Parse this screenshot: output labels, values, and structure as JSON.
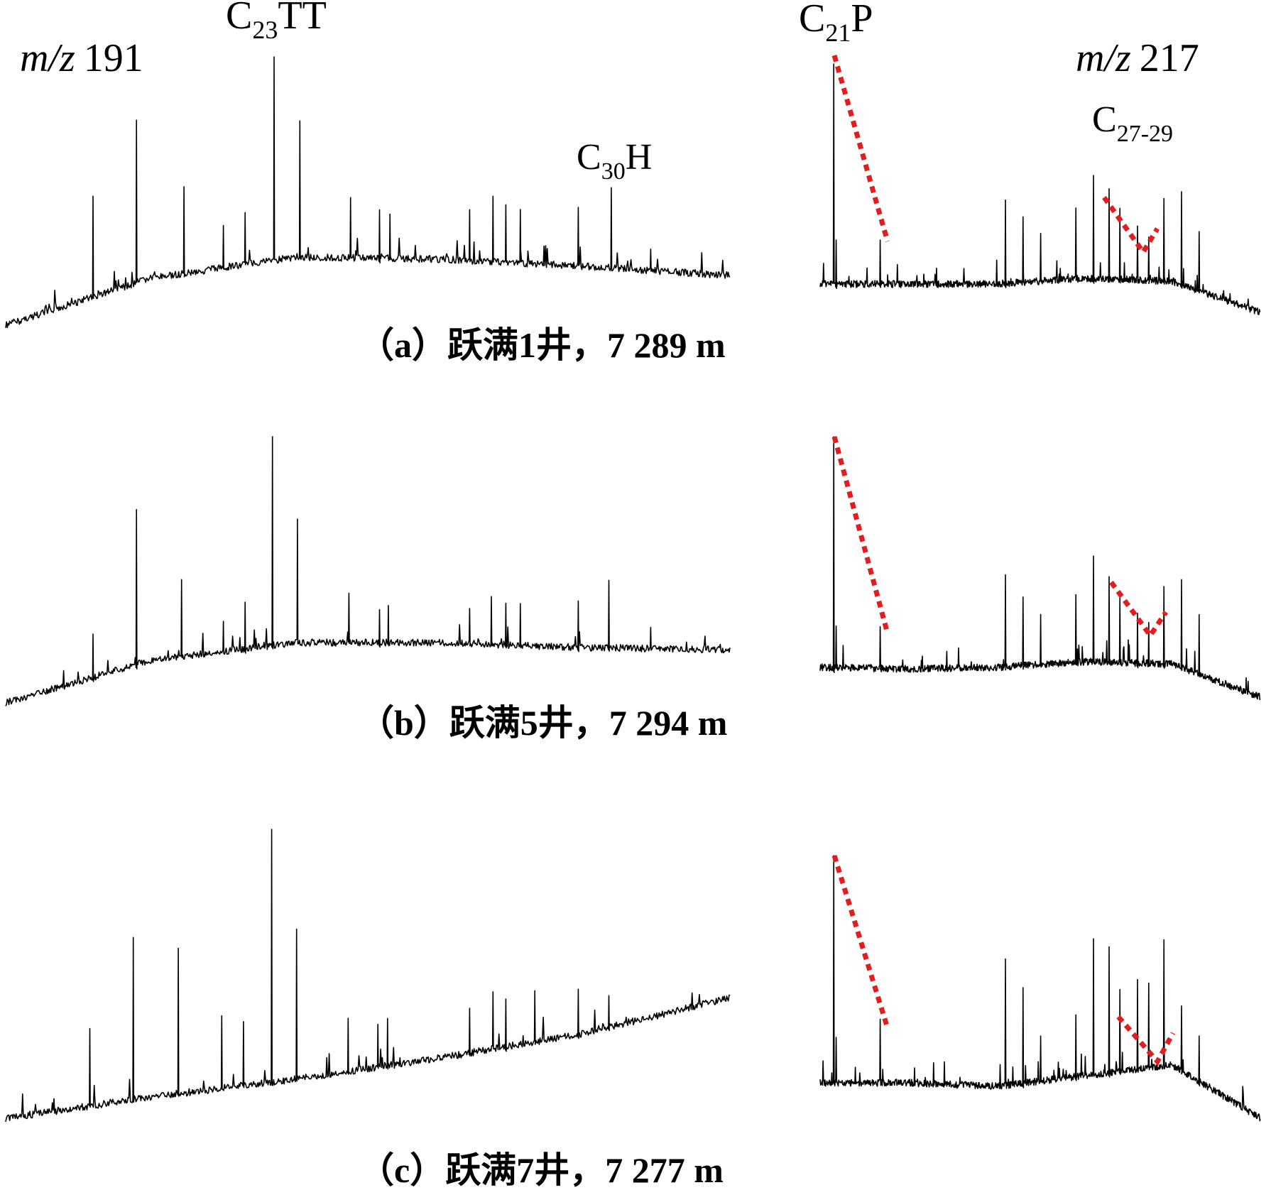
{
  "figure": {
    "panel_captions": [
      "（a）跃满1井，7 289 m",
      "（b）跃满5井，7 294 m",
      "（c）跃满7井，7 277 m"
    ],
    "ion_labels": {
      "left": "m/z 191",
      "right": "m/z 217"
    },
    "compound_labels": {
      "c23tt": {
        "base": "C",
        "sub": "23",
        "suffix": "TT"
      },
      "c30h": {
        "base": "C",
        "sub": "30",
        "suffix": "H"
      },
      "c21p": {
        "base": "C",
        "sub": "21",
        "suffix": "P"
      },
      "c27_29": {
        "base": "C",
        "sub": "27-29",
        "suffix": ""
      }
    },
    "colors": {
      "trace": "#000000",
      "guide": "#e11d1d"
    }
  },
  "chart_data": [
    {
      "type": "line",
      "panel": "a",
      "ion": "m/z 191",
      "peaks": [
        {
          "x": 0.12,
          "h": 0.42
        },
        {
          "x": 0.18,
          "h": 0.72
        },
        {
          "x": 0.245,
          "h": 0.4
        },
        {
          "x": 0.3,
          "h": 0.2
        },
        {
          "x": 0.33,
          "h": 0.25
        },
        {
          "x": 0.37,
          "h": 1.0
        },
        {
          "x": 0.405,
          "h": 0.68
        },
        {
          "x": 0.475,
          "h": 0.3
        },
        {
          "x": 0.515,
          "h": 0.24
        },
        {
          "x": 0.53,
          "h": 0.22
        },
        {
          "x": 0.64,
          "h": 0.25
        },
        {
          "x": 0.672,
          "h": 0.32
        },
        {
          "x": 0.69,
          "h": 0.28
        },
        {
          "x": 0.71,
          "h": 0.26
        },
        {
          "x": 0.79,
          "h": 0.28
        },
        {
          "x": 0.835,
          "h": 0.38
        },
        {
          "x": 0.89,
          "h": 0.1
        }
      ]
    },
    {
      "type": "line",
      "panel": "a",
      "ion": "m/z 217",
      "peaks": [
        {
          "x": 0.03,
          "h": 1.0
        },
        {
          "x": 0.035,
          "h": 0.2
        },
        {
          "x": 0.135,
          "h": 0.2
        },
        {
          "x": 0.42,
          "h": 0.38
        },
        {
          "x": 0.46,
          "h": 0.3
        },
        {
          "x": 0.5,
          "h": 0.22
        },
        {
          "x": 0.58,
          "h": 0.33
        },
        {
          "x": 0.62,
          "h": 0.48
        },
        {
          "x": 0.655,
          "h": 0.42
        },
        {
          "x": 0.68,
          "h": 0.33
        },
        {
          "x": 0.72,
          "h": 0.25
        },
        {
          "x": 0.745,
          "h": 0.2
        },
        {
          "x": 0.78,
          "h": 0.38
        },
        {
          "x": 0.82,
          "h": 0.42
        },
        {
          "x": 0.86,
          "h": 0.26
        }
      ]
    },
    {
      "type": "line",
      "panel": "b",
      "ion": "m/z 191",
      "peaks": [
        {
          "x": 0.12,
          "h": 0.18
        },
        {
          "x": 0.18,
          "h": 0.68
        },
        {
          "x": 0.242,
          "h": 0.35
        },
        {
          "x": 0.3,
          "h": 0.14
        },
        {
          "x": 0.33,
          "h": 0.22
        },
        {
          "x": 0.368,
          "h": 1.0
        },
        {
          "x": 0.402,
          "h": 0.6
        },
        {
          "x": 0.473,
          "h": 0.24
        },
        {
          "x": 0.515,
          "h": 0.16
        },
        {
          "x": 0.528,
          "h": 0.18
        },
        {
          "x": 0.64,
          "h": 0.17
        },
        {
          "x": 0.67,
          "h": 0.23
        },
        {
          "x": 0.69,
          "h": 0.2
        },
        {
          "x": 0.71,
          "h": 0.2
        },
        {
          "x": 0.79,
          "h": 0.22
        },
        {
          "x": 0.832,
          "h": 0.32
        },
        {
          "x": 0.89,
          "h": 0.1
        }
      ]
    },
    {
      "type": "line",
      "panel": "b",
      "ion": "m/z 217",
      "peaks": [
        {
          "x": 0.03,
          "h": 1.0
        },
        {
          "x": 0.035,
          "h": 0.18
        },
        {
          "x": 0.135,
          "h": 0.18
        },
        {
          "x": 0.42,
          "h": 0.4
        },
        {
          "x": 0.46,
          "h": 0.3
        },
        {
          "x": 0.5,
          "h": 0.22
        },
        {
          "x": 0.58,
          "h": 0.3
        },
        {
          "x": 0.62,
          "h": 0.47
        },
        {
          "x": 0.655,
          "h": 0.38
        },
        {
          "x": 0.68,
          "h": 0.3
        },
        {
          "x": 0.72,
          "h": 0.22
        },
        {
          "x": 0.745,
          "h": 0.18
        },
        {
          "x": 0.78,
          "h": 0.34
        },
        {
          "x": 0.82,
          "h": 0.38
        },
        {
          "x": 0.86,
          "h": 0.25
        }
      ]
    },
    {
      "type": "line",
      "panel": "c",
      "ion": "m/z 191",
      "peaks": [
        {
          "x": 0.115,
          "h": 0.28
        },
        {
          "x": 0.175,
          "h": 0.6
        },
        {
          "x": 0.238,
          "h": 0.55
        },
        {
          "x": 0.298,
          "h": 0.28
        },
        {
          "x": 0.328,
          "h": 0.25
        },
        {
          "x": 0.367,
          "h": 1.0
        },
        {
          "x": 0.401,
          "h": 0.6
        },
        {
          "x": 0.472,
          "h": 0.22
        },
        {
          "x": 0.513,
          "h": 0.18
        },
        {
          "x": 0.527,
          "h": 0.2
        },
        {
          "x": 0.64,
          "h": 0.2
        },
        {
          "x": 0.672,
          "h": 0.26
        },
        {
          "x": 0.69,
          "h": 0.22
        },
        {
          "x": 0.73,
          "h": 0.24
        },
        {
          "x": 0.79,
          "h": 0.22
        },
        {
          "x": 0.832,
          "h": 0.16
        }
      ]
    },
    {
      "type": "line",
      "panel": "c",
      "ion": "m/z 217",
      "peaks": [
        {
          "x": 0.03,
          "h": 1.0
        },
        {
          "x": 0.035,
          "h": 0.2
        },
        {
          "x": 0.135,
          "h": 0.28
        },
        {
          "x": 0.42,
          "h": 0.55
        },
        {
          "x": 0.46,
          "h": 0.42
        },
        {
          "x": 0.5,
          "h": 0.2
        },
        {
          "x": 0.58,
          "h": 0.28
        },
        {
          "x": 0.62,
          "h": 0.62
        },
        {
          "x": 0.655,
          "h": 0.58
        },
        {
          "x": 0.68,
          "h": 0.38
        },
        {
          "x": 0.72,
          "h": 0.42
        },
        {
          "x": 0.745,
          "h": 0.4
        },
        {
          "x": 0.78,
          "h": 0.6
        },
        {
          "x": 0.82,
          "h": 0.3
        },
        {
          "x": 0.86,
          "h": 0.2
        }
      ]
    }
  ]
}
